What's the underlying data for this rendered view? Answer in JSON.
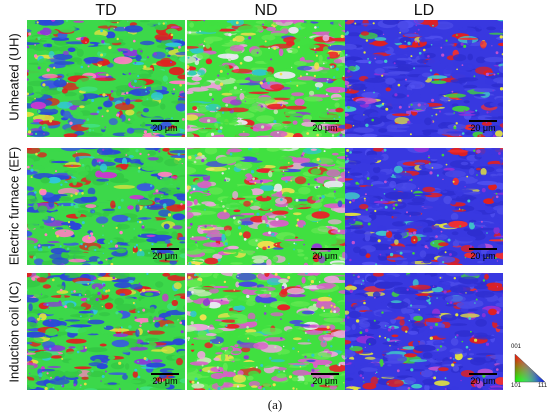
{
  "columns": [
    "TD",
    "ND",
    "LD"
  ],
  "rows": [
    "Unheated (UH)",
    "Electric furnace (EF)",
    "Induction coil (IC)"
  ],
  "scale_label": "20 μm",
  "caption": "(a)",
  "ipf_key": {
    "top": "001",
    "left": "101",
    "right": "111"
  },
  "palettes": {
    "TD": [
      "#3cd84a",
      "#34c844",
      "#2a48d8",
      "#3a5ae0",
      "#e02020",
      "#c838d0",
      "#30c8d8",
      "#e0e040",
      "#8a3ad8",
      "#ff80c0",
      "#40e080"
    ],
    "ND": [
      "#40e040",
      "#60e850",
      "#d860c8",
      "#e8a8d8",
      "#e82028",
      "#4848e0",
      "#e8e8f0",
      "#c0e8b0",
      "#30c8c8",
      "#f0e050",
      "#9040d0"
    ],
    "LD": [
      "#3838e0",
      "#2e2ed0",
      "#4a4ae8",
      "#5050f0",
      "#e02020",
      "#f03030",
      "#9030d8",
      "#40c8c8",
      "#40d040",
      "#e0e040",
      "#c050d0"
    ]
  }
}
